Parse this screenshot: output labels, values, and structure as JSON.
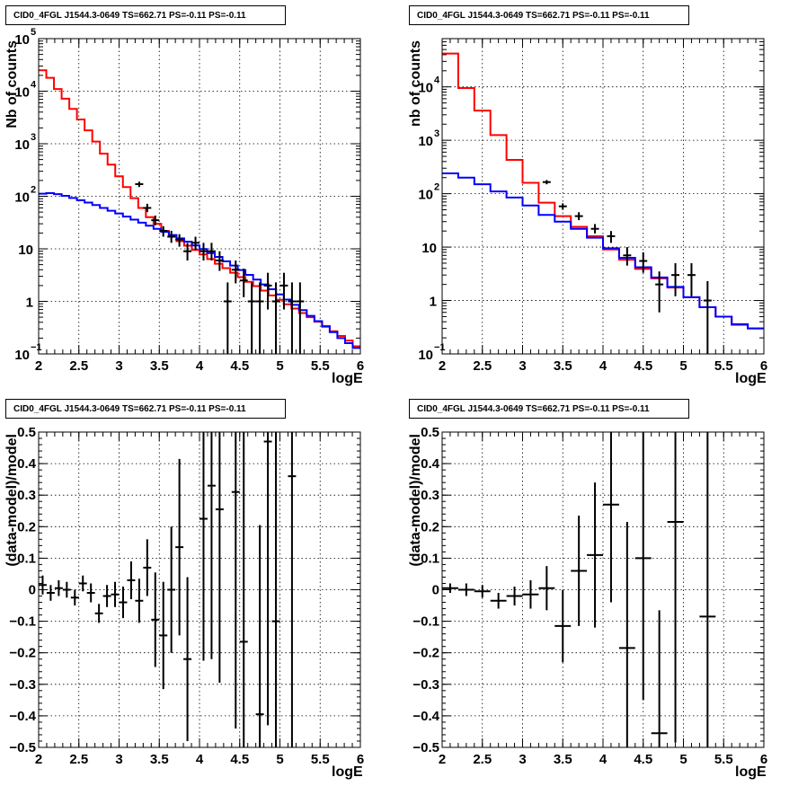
{
  "chart_data": [
    {
      "type": "line",
      "title": "CID0_4FGL J1544.3-0649 TS=662.71 PS=-0.11 PS=-0.11",
      "xlabel": "logE",
      "ylabel": "Nb of counts",
      "xlim": [
        2,
        6
      ],
      "ylim": [
        0.1,
        100000
      ],
      "yscale": "log",
      "grid": true,
      "x_ticks": [
        "2",
        "2.5",
        "3",
        "3.5",
        "4",
        "4.5",
        "5",
        "5.5",
        "6"
      ],
      "y_ticks": [
        {
          "base": "10",
          "exp": "−1",
          "value": 0.1
        },
        {
          "base": "1",
          "exp": "",
          "value": 1
        },
        {
          "base": "10",
          "exp": "",
          "value": 10
        },
        {
          "base": "10",
          "exp": "2",
          "value": 100
        },
        {
          "base": "10",
          "exp": "3",
          "value": 1000
        },
        {
          "base": "10",
          "exp": "4",
          "value": 10000
        },
        {
          "base": "10",
          "exp": "5",
          "value": 100000
        }
      ],
      "bin_edges_range": [
        2,
        6
      ],
      "series": [
        {
          "color": "#ff0000",
          "style": "step",
          "values": [
            25000,
            18000,
            11000,
            7200,
            4600,
            2900,
            1800,
            1100,
            650,
            400,
            240,
            150,
            92,
            60,
            40,
            30,
            22,
            17,
            14,
            11.5,
            9.5,
            7.8,
            6.4,
            5.2,
            4.3,
            3.5,
            2.9,
            2.35,
            1.95,
            1.6,
            1.3,
            1.07,
            0.88,
            0.73,
            0.6,
            0.5,
            0.41,
            0.34,
            0.27,
            0.22,
            0.18,
            0.14
          ]
        },
        {
          "color": "#0000ff",
          "style": "step",
          "values": [
            112,
            115,
            110,
            102,
            93,
            84,
            76,
            68,
            60,
            53,
            47,
            41,
            36,
            31.5,
            27.5,
            24,
            21,
            18.3,
            15.8,
            13.7,
            11.6,
            9.9,
            8.3,
            7,
            5.8,
            4.8,
            3.95,
            3.2,
            2.6,
            2.1,
            1.7,
            1.36,
            1.08,
            0.86,
            0.68,
            0.53,
            0.42,
            0.33,
            0.26,
            0.2,
            0.16,
            0.13
          ]
        }
      ],
      "points": [
        {
          "x": 3.25,
          "y": 170,
          "lo": 150,
          "hi": 190
        },
        {
          "x": 3.35,
          "y": 60,
          "lo": 50,
          "hi": 72
        },
        {
          "x": 3.45,
          "y": 35,
          "lo": 28,
          "hi": 43
        },
        {
          "x": 3.55,
          "y": 22,
          "lo": 17,
          "hi": 27
        },
        {
          "x": 3.65,
          "y": 17,
          "lo": 13,
          "hi": 22
        },
        {
          "x": 3.75,
          "y": 15,
          "lo": 11,
          "hi": 19
        },
        {
          "x": 3.85,
          "y": 9,
          "lo": 6,
          "hi": 13
        },
        {
          "x": 3.95,
          "y": 13,
          "lo": 9.5,
          "hi": 17
        },
        {
          "x": 4.05,
          "y": 9,
          "lo": 6,
          "hi": 13
        },
        {
          "x": 4.15,
          "y": 9,
          "lo": 6,
          "hi": 13
        },
        {
          "x": 4.25,
          "y": 6,
          "lo": 3.8,
          "hi": 9
        },
        {
          "x": 4.35,
          "y": 1,
          "lo": 0.1,
          "hi": 2.3
        },
        {
          "x": 4.45,
          "y": 4,
          "lo": 2.2,
          "hi": 6
        },
        {
          "x": 4.55,
          "y": 2.5,
          "lo": 1.2,
          "hi": 4.2
        },
        {
          "x": 4.65,
          "y": 1,
          "lo": 0.1,
          "hi": 2.3
        },
        {
          "x": 4.75,
          "y": 1,
          "lo": 0.1,
          "hi": 2.3
        },
        {
          "x": 4.85,
          "y": 2,
          "lo": 0.7,
          "hi": 3.5
        },
        {
          "x": 4.95,
          "y": 1,
          "lo": 0.1,
          "hi": 2.3
        },
        {
          "x": 5.05,
          "y": 2,
          "lo": 0.7,
          "hi": 3.5
        },
        {
          "x": 5.15,
          "y": 1,
          "lo": 0.1,
          "hi": 2.3
        },
        {
          "x": 5.25,
          "y": 1,
          "lo": 0.1,
          "hi": 2.3
        }
      ]
    },
    {
      "type": "line",
      "title": "CID0_4FGL J1544.3-0649 TS=662.71 PS=-0.11 PS=-0.11",
      "xlabel": "logE",
      "ylabel": "nb of counts",
      "xlim": [
        2,
        6
      ],
      "ylim": [
        0.1,
        80000
      ],
      "yscale": "log",
      "grid": true,
      "x_ticks": [
        "2",
        "2.5",
        "3",
        "3.5",
        "4",
        "4.5",
        "5",
        "5.5",
        "6"
      ],
      "y_ticks": [
        {
          "base": "10",
          "exp": "−1",
          "value": 0.1
        },
        {
          "base": "1",
          "exp": "",
          "value": 1
        },
        {
          "base": "10",
          "exp": "",
          "value": 10
        },
        {
          "base": "10",
          "exp": "2",
          "value": 100
        },
        {
          "base": "10",
          "exp": "3",
          "value": 1000
        },
        {
          "base": "10",
          "exp": "4",
          "value": 10000
        }
      ],
      "bin_edges_range": [
        2,
        6
      ],
      "series": [
        {
          "color": "#ff0000",
          "style": "step",
          "values": [
            42000,
            9500,
            3600,
            1250,
            430,
            160,
            68,
            38,
            24,
            16,
            9,
            5.8,
            3.9,
            2.6,
            1.75,
            1.15,
            0.75,
            0.5,
            0.35,
            0.3
          ]
        },
        {
          "color": "#0000ff",
          "style": "step",
          "values": [
            240,
            200,
            150,
            110,
            85,
            60,
            40,
            30,
            22,
            15,
            9.5,
            6.3,
            4.2,
            2.7,
            1.8,
            1.15,
            0.75,
            0.5,
            0.36,
            0.3
          ]
        }
      ],
      "points": [
        {
          "x": 3.3,
          "y": 165,
          "lo": 150,
          "hi": 180
        },
        {
          "x": 3.5,
          "y": 58,
          "lo": 50,
          "hi": 66
        },
        {
          "x": 3.7,
          "y": 38,
          "lo": 32,
          "hi": 45
        },
        {
          "x": 3.9,
          "y": 22,
          "lo": 18,
          "hi": 27
        },
        {
          "x": 4.1,
          "y": 16,
          "lo": 12,
          "hi": 20
        },
        {
          "x": 4.3,
          "y": 7,
          "lo": 4.5,
          "hi": 10
        },
        {
          "x": 4.5,
          "y": 5.5,
          "lo": 3.3,
          "hi": 8
        },
        {
          "x": 4.7,
          "y": 2,
          "lo": 0.6,
          "hi": 3.5
        },
        {
          "x": 4.9,
          "y": 3,
          "lo": 1.2,
          "hi": 5
        },
        {
          "x": 5.1,
          "y": 3,
          "lo": 1.2,
          "hi": 5
        },
        {
          "x": 5.3,
          "y": 1,
          "lo": 0.1,
          "hi": 2.3
        }
      ]
    },
    {
      "type": "scatter",
      "title": "CID0_4FGL J1544.3-0649 TS=662.71 PS=-0.11 PS=-0.11",
      "xlabel": "logE",
      "ylabel": "(data-model)/model",
      "xlim": [
        2,
        6
      ],
      "ylim": [
        -0.5,
        0.5
      ],
      "grid": true,
      "x_ticks": [
        "2",
        "2.5",
        "3",
        "3.5",
        "4",
        "4.5",
        "5",
        "5.5",
        "6"
      ],
      "y_ticks": [
        "−0.5",
        "−0.4",
        "−0.3",
        "−0.2",
        "−0.1",
        "0",
        "0.1",
        "0.2",
        "0.3",
        "0.4",
        "0.5"
      ],
      "xerr": 0.05,
      "points": [
        {
          "x": 2.05,
          "y": 0.015,
          "err": 0.03
        },
        {
          "x": 2.15,
          "y": -0.01,
          "err": 0.025
        },
        {
          "x": 2.25,
          "y": 0.005,
          "err": 0.025
        },
        {
          "x": 2.35,
          "y": 0.0,
          "err": 0.025
        },
        {
          "x": 2.45,
          "y": -0.025,
          "err": 0.025
        },
        {
          "x": 2.55,
          "y": 0.02,
          "err": 0.025
        },
        {
          "x": 2.65,
          "y": -0.01,
          "err": 0.03
        },
        {
          "x": 2.75,
          "y": -0.075,
          "err": 0.03
        },
        {
          "x": 2.85,
          "y": -0.02,
          "err": 0.035
        },
        {
          "x": 2.95,
          "y": -0.015,
          "err": 0.04
        },
        {
          "x": 3.05,
          "y": -0.04,
          "err": 0.05
        },
        {
          "x": 3.15,
          "y": 0.03,
          "err": 0.06
        },
        {
          "x": 3.25,
          "y": -0.035,
          "err": 0.07
        },
        {
          "x": 3.35,
          "y": 0.07,
          "err": 0.09
        },
        {
          "x": 3.45,
          "y": -0.095,
          "err": 0.15
        },
        {
          "x": 3.55,
          "y": -0.145,
          "err": 0.17
        },
        {
          "x": 3.65,
          "y": 0.0,
          "err": 0.2
        },
        {
          "x": 3.75,
          "y": 0.135,
          "err": 0.28
        },
        {
          "x": 3.85,
          "y": -0.22,
          "err": 0.26
        },
        {
          "x": 4.05,
          "y": 0.225,
          "err": 0.45
        },
        {
          "x": 4.15,
          "y": 0.33,
          "err": 0.55
        },
        {
          "x": 4.25,
          "y": 0.255,
          "err": 0.55
        },
        {
          "x": 4.45,
          "y": 0.31,
          "err": 0.75
        },
        {
          "x": 4.55,
          "y": -0.165,
          "err": 0.75
        },
        {
          "x": 4.75,
          "y": -0.395,
          "err": 0.6
        },
        {
          "x": 4.85,
          "y": 0.47,
          "err": 0.9
        },
        {
          "x": 4.95,
          "y": -0.1,
          "err": 0.9
        },
        {
          "x": 5.15,
          "y": 0.36,
          "err": 1.2
        }
      ]
    },
    {
      "type": "scatter",
      "title": "CID0_4FGL J1544.3-0649 TS=662.71 PS=-0.11 PS=-0.11",
      "xlabel": "logE",
      "ylabel": "(data-model)/model",
      "xlim": [
        2,
        6
      ],
      "ylim": [
        -0.5,
        0.5
      ],
      "grid": true,
      "x_ticks": [
        "2",
        "2.5",
        "3",
        "3.5",
        "4",
        "4.5",
        "5",
        "5.5",
        "6"
      ],
      "y_ticks": [
        "−0.5",
        "−0.4",
        "−0.3",
        "−0.2",
        "−0.1",
        "0",
        "0.1",
        "0.2",
        "0.3",
        "0.4",
        "0.5"
      ],
      "xerr": 0.1,
      "points": [
        {
          "x": 2.1,
          "y": 0.005,
          "err": 0.015
        },
        {
          "x": 2.3,
          "y": 0.0,
          "err": 0.02
        },
        {
          "x": 2.5,
          "y": -0.005,
          "err": 0.02
        },
        {
          "x": 2.7,
          "y": -0.035,
          "err": 0.025
        },
        {
          "x": 2.9,
          "y": -0.02,
          "err": 0.03
        },
        {
          "x": 3.1,
          "y": -0.015,
          "err": 0.045
        },
        {
          "x": 3.3,
          "y": 0.005,
          "err": 0.07
        },
        {
          "x": 3.5,
          "y": -0.115,
          "err": 0.115
        },
        {
          "x": 3.7,
          "y": 0.06,
          "err": 0.175
        },
        {
          "x": 3.9,
          "y": 0.11,
          "err": 0.23
        },
        {
          "x": 4.1,
          "y": 0.27,
          "err": 0.31
        },
        {
          "x": 4.3,
          "y": -0.185,
          "err": 0.4
        },
        {
          "x": 4.5,
          "y": 0.1,
          "err": 0.45
        },
        {
          "x": 4.7,
          "y": -0.455,
          "err": 0.39
        },
        {
          "x": 4.9,
          "y": 0.215,
          "err": 0.7
        },
        {
          "x": 5.3,
          "y": -0.085,
          "err": 0.95
        }
      ]
    }
  ]
}
